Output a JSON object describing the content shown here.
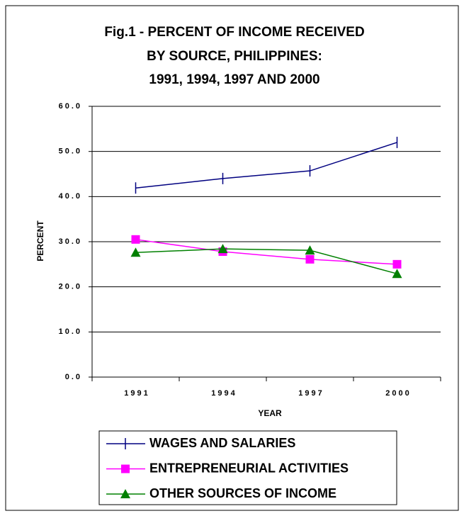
{
  "chart_data": {
    "type": "line",
    "title": [
      "Fig.1 - PERCENT OF INCOME RECEIVED",
      "BY  SOURCE,   PHILIPPINES:",
      "1991, 1994, 1997 AND 2000"
    ],
    "x_label": "YEAR",
    "y_label": "PERCENT",
    "categories": [
      "1991",
      "1994",
      "1997",
      "2000"
    ],
    "series": [
      {
        "name": "WAGES AND SALARIES",
        "color": "#000080",
        "marker": "tick",
        "values": [
          41.9,
          44.0,
          45.7,
          52.0
        ]
      },
      {
        "name": "ENTREPRENEURIAL ACTIVITIES",
        "color": "#ff00ff",
        "marker": "square",
        "values": [
          30.5,
          27.8,
          26.1,
          25.0
        ]
      },
      {
        "name": "OTHER SOURCES OF INCOME",
        "color": "#008000",
        "marker": "triangle",
        "values": [
          27.6,
          28.4,
          28.1,
          22.9
        ]
      }
    ],
    "ylim": [
      0,
      60
    ],
    "yticks": [
      {
        "value": 0,
        "label": "0.0"
      },
      {
        "value": 10,
        "label": "10.0"
      },
      {
        "value": 20,
        "label": "20.0"
      },
      {
        "value": 30,
        "label": "30.0"
      },
      {
        "value": 40,
        "label": "40.0"
      },
      {
        "value": 50,
        "label": "50.0"
      },
      {
        "value": 60,
        "label": "60.0"
      }
    ],
    "grid": true,
    "legend": "bottom"
  }
}
